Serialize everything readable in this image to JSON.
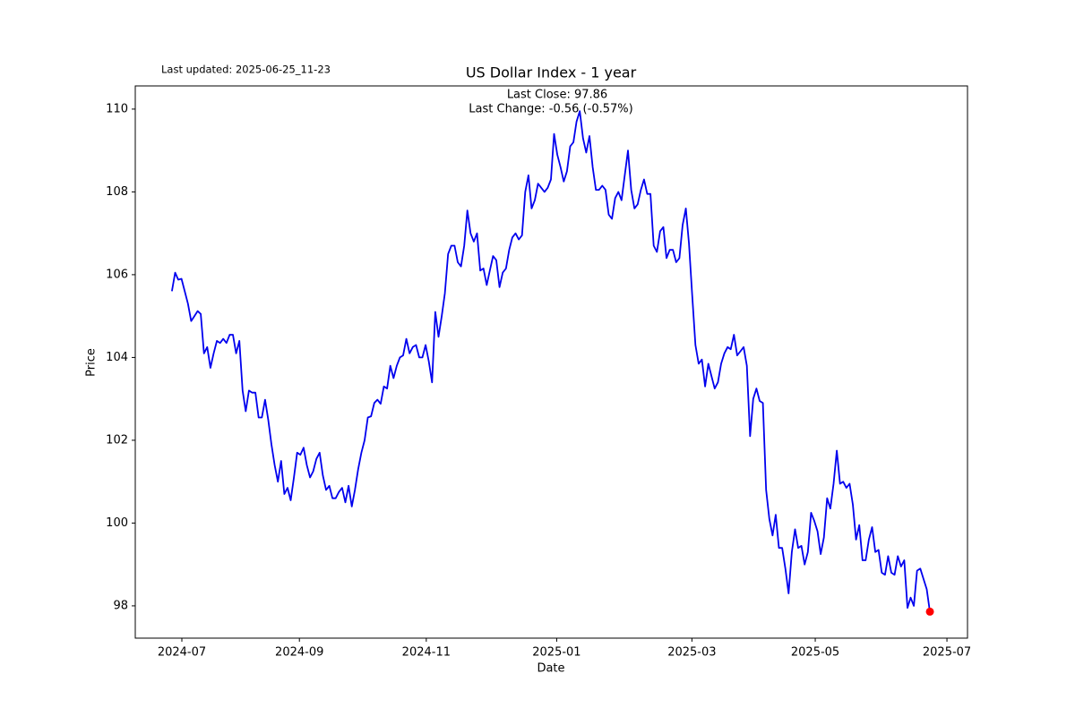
{
  "chart_data": {
    "type": "line",
    "title": "US Dollar Index - 1 year",
    "updated_note": "Last updated: 2025-06-25_11-23",
    "annotations": [
      "Last Close: 97.86",
      "Last Change: -0.56 (-0.57%)"
    ],
    "x_label": "Date",
    "y_label": "Price",
    "color": "#0000ee",
    "last_marker_color": "#ff0000",
    "values": [
      105.6,
      106.05,
      105.88,
      105.9,
      105.6,
      105.3,
      104.88,
      105.0,
      105.12,
      105.05,
      104.1,
      104.25,
      103.75,
      104.1,
      104.4,
      104.35,
      104.45,
      104.35,
      104.55,
      104.55,
      104.1,
      104.4,
      103.2,
      102.7,
      103.2,
      103.15,
      103.15,
      102.55,
      102.55,
      102.98,
      102.5,
      101.9,
      101.4,
      101.0,
      101.5,
      100.7,
      100.85,
      100.55,
      101.1,
      101.7,
      101.65,
      101.82,
      101.4,
      101.1,
      101.25,
      101.55,
      101.7,
      101.15,
      100.8,
      100.9,
      100.6,
      100.6,
      100.75,
      100.85,
      100.5,
      100.9,
      100.4,
      100.8,
      101.3,
      101.7,
      102.0,
      102.55,
      102.58,
      102.9,
      102.98,
      102.88,
      103.3,
      103.25,
      103.8,
      103.5,
      103.8,
      104.0,
      104.05,
      104.45,
      104.1,
      104.25,
      104.3,
      104.0,
      104.0,
      104.3,
      103.9,
      103.4,
      105.1,
      104.5,
      105.0,
      105.55,
      106.5,
      106.7,
      106.7,
      106.3,
      106.2,
      106.7,
      107.55,
      107.0,
      106.8,
      107.0,
      106.1,
      106.15,
      105.75,
      106.1,
      106.45,
      106.35,
      105.7,
      106.05,
      106.15,
      106.6,
      106.9,
      107.0,
      106.85,
      106.95,
      108.0,
      108.4,
      107.6,
      107.8,
      108.2,
      108.1,
      108.0,
      108.1,
      108.3,
      109.4,
      108.9,
      108.6,
      108.25,
      108.5,
      109.1,
      109.2,
      109.7,
      109.95,
      109.3,
      108.95,
      109.35,
      108.6,
      108.05,
      108.05,
      108.15,
      108.05,
      107.45,
      107.35,
      107.85,
      108.0,
      107.8,
      108.4,
      109.0,
      108.05,
      107.6,
      107.7,
      108.05,
      108.3,
      107.95,
      107.95,
      106.7,
      106.55,
      107.05,
      107.15,
      106.4,
      106.6,
      106.6,
      106.3,
      106.4,
      107.2,
      107.6,
      106.75,
      105.5,
      104.3,
      103.85,
      103.95,
      103.3,
      103.85,
      103.55,
      103.25,
      103.4,
      103.85,
      104.1,
      104.25,
      104.2,
      104.55,
      104.05,
      104.15,
      104.25,
      103.8,
      102.1,
      103.0,
      103.25,
      102.95,
      102.9,
      100.8,
      100.1,
      99.7,
      100.2,
      99.4,
      99.4,
      98.9,
      98.3,
      99.3,
      99.85,
      99.4,
      99.45,
      99.0,
      99.3,
      100.25,
      100.05,
      99.8,
      99.25,
      99.65,
      100.6,
      100.35,
      100.95,
      101.75,
      100.95,
      101.0,
      100.85,
      100.95,
      100.45,
      99.6,
      99.95,
      99.1,
      99.1,
      99.6,
      99.9,
      99.3,
      99.35,
      98.8,
      98.75,
      99.2,
      98.8,
      98.75,
      99.2,
      98.95,
      99.1,
      97.95,
      98.2,
      98.0,
      98.85,
      98.9,
      98.65,
      98.4,
      97.86
    ],
    "xlim": [
      -11.4,
      247.7
    ],
    "xticks": [
      {
        "value": 3.1,
        "label": "2024-07"
      },
      {
        "value": 39.7,
        "label": "2024-09"
      },
      {
        "value": 79.2,
        "label": "2024-11"
      },
      {
        "value": 119.8,
        "label": "2025-01"
      },
      {
        "value": 161.9,
        "label": "2025-03"
      },
      {
        "value": 200.3,
        "label": "2025-05"
      },
      {
        "value": 241.3,
        "label": "2025-07"
      }
    ],
    "ylim": [
      97.22,
      110.56
    ],
    "yticks": [
      98,
      100,
      102,
      104,
      106,
      108,
      110
    ],
    "grid": false
  }
}
